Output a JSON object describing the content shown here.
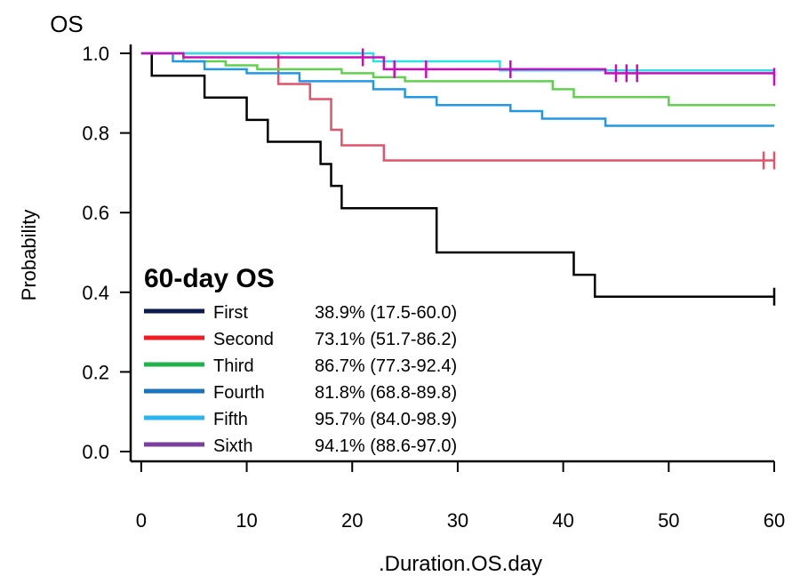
{
  "chart_data": {
    "type": "line",
    "title": "OS",
    "xlabel": ".Duration.OS.day",
    "ylabel": "Probability",
    "xlim": [
      -1,
      60
    ],
    "ylim": [
      0,
      1
    ],
    "x_ticks": [
      "0",
      "10",
      "20",
      "30",
      "40",
      "50",
      "60"
    ],
    "y_ticks": [
      "0.0",
      "0.2",
      "0.4",
      "0.6",
      "0.8",
      "1.0"
    ],
    "legend_title": "60-day OS",
    "legend_position": "bottom-left",
    "series": [
      {
        "name": "First",
        "estimate": "38.9% (17.5-60.0)",
        "legend_color": "#0c1b4d",
        "color": "#000000",
        "steps": [
          [
            0,
            1.0
          ],
          [
            1,
            0.944
          ],
          [
            6,
            0.889
          ],
          [
            10,
            0.833
          ],
          [
            12,
            0.778
          ],
          [
            17,
            0.722
          ],
          [
            18,
            0.667
          ],
          [
            19,
            0.611
          ],
          [
            28,
            0.5
          ],
          [
            41,
            0.444
          ],
          [
            43,
            0.389
          ],
          [
            60,
            0.389
          ]
        ],
        "censor_x": [
          60
        ]
      },
      {
        "name": "Second",
        "estimate": "73.1% (51.7-86.2)",
        "legend_color": "#ef1c24",
        "color": "#df536b",
        "steps": [
          [
            0,
            1.0
          ],
          [
            13,
            0.923
          ],
          [
            16,
            0.885
          ],
          [
            18,
            0.808
          ],
          [
            19,
            0.769
          ],
          [
            23,
            0.731
          ],
          [
            59,
            0.731
          ],
          [
            60,
            0.731
          ]
        ],
        "censor_x": [
          59,
          60
        ]
      },
      {
        "name": "Third",
        "estimate": "86.7% (77.3-92.4)",
        "legend_color": "#22b24c",
        "color": "#61d04f",
        "steps": [
          [
            0,
            1.0
          ],
          [
            4,
            0.98
          ],
          [
            8,
            0.97
          ],
          [
            11,
            0.96
          ],
          [
            19,
            0.95
          ],
          [
            22,
            0.94
          ],
          [
            25,
            0.93
          ],
          [
            39,
            0.91
          ],
          [
            41,
            0.89
          ],
          [
            50,
            0.87
          ],
          [
            60,
            0.867
          ]
        ],
        "censor_x": []
      },
      {
        "name": "Fourth",
        "estimate": "81.8% (68.8-89.8)",
        "legend_color": "#1b75bc",
        "color": "#2297e6",
        "steps": [
          [
            0,
            1.0
          ],
          [
            3,
            0.98
          ],
          [
            6,
            0.96
          ],
          [
            10,
            0.95
          ],
          [
            15,
            0.93
          ],
          [
            22,
            0.91
          ],
          [
            25,
            0.89
          ],
          [
            28,
            0.87
          ],
          [
            35,
            0.855
          ],
          [
            38,
            0.836
          ],
          [
            44,
            0.818
          ],
          [
            60,
            0.818
          ]
        ],
        "censor_x": []
      },
      {
        "name": "Fifth",
        "estimate": "95.7% (84.0-98.9)",
        "legend_color": "#29b6f0",
        "color": "#28e2e5",
        "steps": [
          [
            0,
            1.0
          ],
          [
            22,
            0.98
          ],
          [
            34,
            0.957
          ],
          [
            60,
            0.957
          ]
        ],
        "censor_x": []
      },
      {
        "name": "Sixth",
        "estimate": "94.1% (88.6-97.0)",
        "legend_color": "#7b3fa0",
        "color": "#cd0bbc",
        "steps": [
          [
            0,
            1.0
          ],
          [
            4,
            0.99
          ],
          [
            23,
            0.96
          ],
          [
            44,
            0.95
          ],
          [
            60,
            0.941
          ]
        ],
        "censor_x": [
          21,
          24,
          27,
          35,
          45,
          46,
          47,
          60
        ]
      }
    ]
  }
}
